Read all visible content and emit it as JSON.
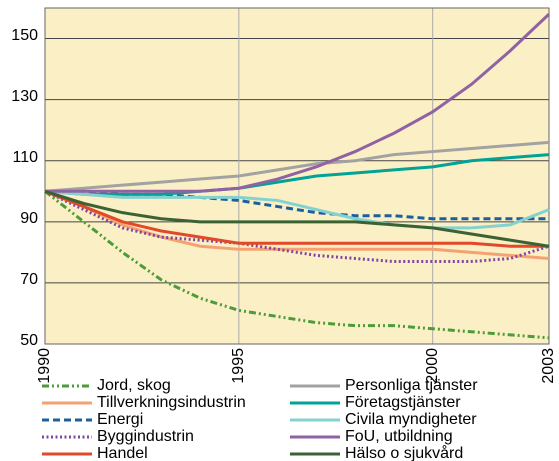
{
  "chart_data": {
    "type": "line",
    "x": [
      1990,
      1991,
      1992,
      1993,
      1994,
      1995,
      1996,
      1997,
      1998,
      1999,
      2000,
      2001,
      2002,
      2003
    ],
    "xlim": [
      1990,
      2003
    ],
    "xticks": [
      1990,
      1995,
      2000,
      2003
    ],
    "ylim": [
      50,
      160
    ],
    "yticks": [
      50,
      70,
      90,
      110,
      130,
      150
    ],
    "grid": true,
    "legend": "bottom",
    "background": "#fbf0c5",
    "series": [
      {
        "name": "Jord, skog",
        "color": "#4d9b3a",
        "dash": "dashdot",
        "values": [
          100,
          90,
          80,
          71,
          65,
          61,
          59,
          57,
          56,
          56,
          55,
          54,
          53,
          52
        ]
      },
      {
        "name": "Tillverkningsindustrin",
        "color": "#f5a273",
        "dash": "solid",
        "values": [
          100,
          95,
          89,
          85,
          82,
          81,
          81,
          81,
          81,
          81,
          81,
          80,
          79,
          78
        ]
      },
      {
        "name": "Energi",
        "color": "#1c5f9c",
        "dash": "dashed",
        "values": [
          100,
          100,
          99,
          99,
          98,
          97,
          95,
          93,
          92,
          92,
          91,
          91,
          91,
          91
        ]
      },
      {
        "name": "Byggindustrin",
        "color": "#8244a3",
        "dash": "dotted",
        "values": [
          100,
          94,
          88,
          85,
          84,
          83,
          81,
          79,
          78,
          77,
          77,
          77,
          78,
          82
        ]
      },
      {
        "name": "Handel",
        "color": "#e2482a",
        "dash": "solid",
        "values": [
          100,
          95,
          90,
          87,
          85,
          83,
          83,
          83,
          83,
          83,
          83,
          83,
          82,
          82
        ]
      },
      {
        "name": "Personliga tjänster",
        "color": "#a2a2a2",
        "dash": "solid",
        "values": [
          100,
          101,
          102,
          103,
          104,
          105,
          107,
          109,
          110,
          112,
          113,
          114,
          115,
          116
        ]
      },
      {
        "name": "Företagstjänster",
        "color": "#00a396",
        "dash": "solid",
        "values": [
          100,
          99,
          99,
          99,
          100,
          101,
          103,
          105,
          106,
          107,
          108,
          110,
          111,
          112
        ]
      },
      {
        "name": "Civila myndigheter",
        "color": "#84d2d0",
        "dash": "solid",
        "values": [
          100,
          99,
          98,
          98,
          98,
          98,
          97,
          94,
          91,
          89,
          88,
          88,
          89,
          94
        ]
      },
      {
        "name": "FoU, utbildning",
        "color": "#9162a3",
        "dash": "solid",
        "values": [
          100,
          100,
          100,
          100,
          100,
          101,
          104,
          108,
          113,
          119,
          126,
          135,
          146,
          158
        ]
      },
      {
        "name": "Hälso o sjukvård",
        "color": "#3b6233",
        "dash": "solid",
        "values": [
          100,
          96,
          93,
          91,
          90,
          90,
          90,
          90,
          90,
          89,
          88,
          86,
          84,
          82
        ]
      }
    ]
  }
}
